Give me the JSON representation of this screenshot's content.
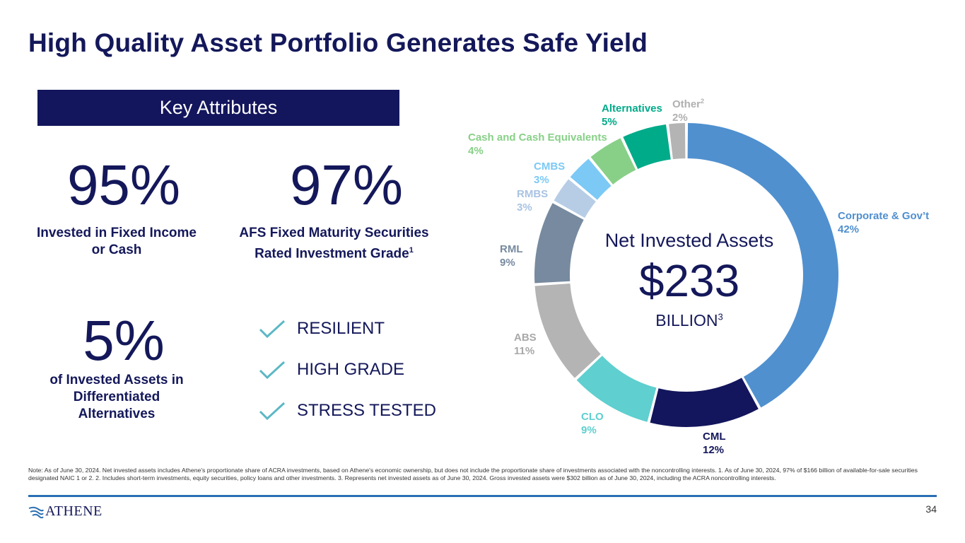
{
  "title": "High Quality Asset Portfolio Generates Safe Yield",
  "key_attributes": {
    "label": "Key Attributes",
    "stats": [
      {
        "value": "95%",
        "caption_line1": "Invested in Fixed Income",
        "caption_line2": "or Cash"
      },
      {
        "value": "97%",
        "caption_line1": "AFS Fixed Maturity Securities",
        "caption_line2": "Rated Investment Grade",
        "caption_sup": "1"
      },
      {
        "value": "5%",
        "caption_line1": "of Invested Assets in",
        "caption_line2": "Differentiated",
        "caption_line3": "Alternatives"
      }
    ],
    "checks": [
      "RESILIENT",
      "HIGH GRADE",
      "STRESS TESTED"
    ],
    "check_color": "#5bb8c4"
  },
  "center": {
    "title": "Net Invested Assets",
    "value": "$233",
    "unit": "BILLION",
    "unit_sup": "3"
  },
  "chart_data": {
    "type": "pie",
    "donut": true,
    "start": "top, clockwise",
    "slices": [
      {
        "name": "Corporate & Gov’t",
        "value": 42,
        "label": "42%",
        "color": "#5090cf"
      },
      {
        "name": "CML",
        "value": 12,
        "label": "12%",
        "color": "#13165c"
      },
      {
        "name": "CLO",
        "value": 9,
        "label": "9%",
        "color": "#5fcfcf"
      },
      {
        "name": "ABS",
        "value": 11,
        "label": "11%",
        "color": "#b4b4b4"
      },
      {
        "name": "RML",
        "value": 9,
        "label": "9%",
        "color": "#778a9f"
      },
      {
        "name": "RMBS",
        "value": 3,
        "label": "3%",
        "color": "#b7cde6"
      },
      {
        "name": "CMBS",
        "value": 3,
        "label": "3%",
        "color": "#7cc9f6"
      },
      {
        "name": "Cash and Cash Equivalents",
        "value": 4,
        "label": "4%",
        "color": "#88d088"
      },
      {
        "name": "Alternatives",
        "value": 5,
        "label": "5%",
        "color": "#00ab8a"
      },
      {
        "name": "Other",
        "name_sup": "2",
        "value": 2,
        "label": "2%",
        "color": "#b4b4b4"
      }
    ]
  },
  "note": "Note: As of June 30, 2024. Net invested assets includes Athene's proportionate share of ACRA investments, based on Athene's economic ownership, but does not include the proportionate share of investments associated with the noncontrolling interests. 1. As of June 30, 2024, 97% of $166 billion of available-for-sale securities designated NAIC 1 or 2. 2. Includes short-term investments, equity securities, policy loans and other investments. 3. Represents net invested assets as of June 30, 2024. Gross invested assets were $302 billion as of June 30, 2024, including the ACRA noncontrolling interests.",
  "logo_text": "ATHENE",
  "page_number": "34"
}
